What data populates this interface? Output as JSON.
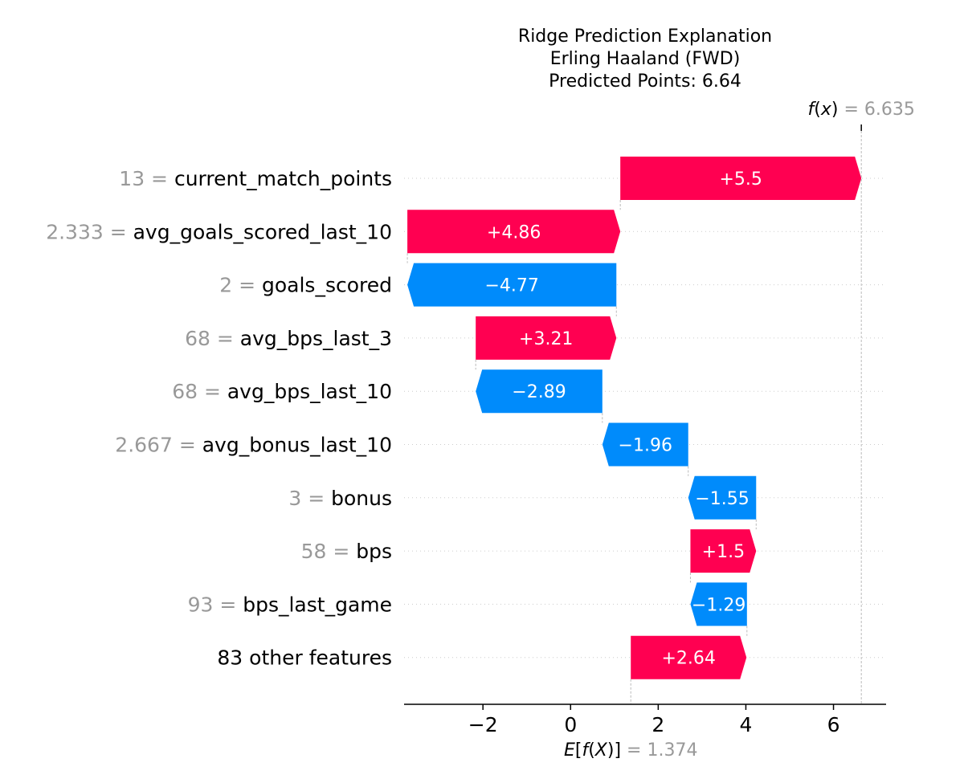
{
  "title_lines": [
    "Ridge Prediction Explanation",
    "Erling Haaland (FWD)",
    "Predicted Points: 6.64"
  ],
  "chart_data": {
    "type": "waterfall",
    "base_value": 1.374,
    "base_label": "1.374",
    "fx_value": 6.635,
    "fx_label": "6.635",
    "xlim": [
      -3.8,
      7.2
    ],
    "xticks": [
      -2,
      0,
      2,
      4,
      6
    ],
    "xtick_labels": [
      "−2",
      "0",
      "2",
      "4",
      "6"
    ],
    "features": [
      {
        "value_label": "13",
        "name": "current_match_points",
        "start": 1.135,
        "end": 6.635,
        "label": "+5.5"
      },
      {
        "value_label": "2.333",
        "name": "avg_goals_scored_last_10",
        "start": -3.725,
        "end": 1.135,
        "label": "+4.86"
      },
      {
        "value_label": "2",
        "name": "goals_scored",
        "start": 1.045,
        "end": -3.725,
        "label": "−4.77"
      },
      {
        "value_label": "68",
        "name": "avg_bps_last_3",
        "start": -2.165,
        "end": 1.045,
        "label": "+3.21"
      },
      {
        "value_label": "68",
        "name": "avg_bps_last_10",
        "start": 0.725,
        "end": -2.165,
        "label": "−2.89"
      },
      {
        "value_label": "2.667",
        "name": "avg_bonus_last_10",
        "start": 2.685,
        "end": 0.725,
        "label": "−1.96"
      },
      {
        "value_label": "3",
        "name": "bonus",
        "start": 4.235,
        "end": 2.685,
        "label": "−1.55"
      },
      {
        "value_label": "58",
        "name": "bps",
        "start": 2.735,
        "end": 4.235,
        "label": "+1.5"
      },
      {
        "value_label": "93",
        "name": "bps_last_game",
        "start": 4.025,
        "end": 2.735,
        "label": "−1.29"
      },
      {
        "value_label": "",
        "name": "83 other features",
        "start": 1.374,
        "end": 4.014,
        "label": "+2.64"
      }
    ],
    "colors": {
      "positive": "#ff0051",
      "negative": "#008bfb",
      "muted": "#999999",
      "text": "#000000"
    }
  }
}
